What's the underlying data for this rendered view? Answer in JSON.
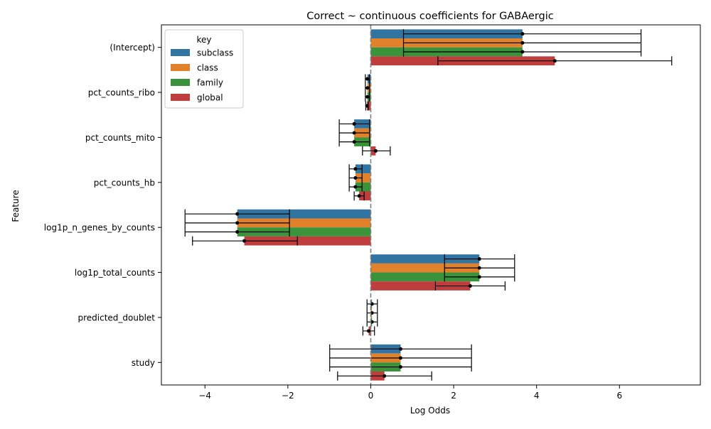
{
  "chart_data": {
    "type": "bar",
    "orientation": "horizontal",
    "title": "Correct ~ continuous coefficients for GABAergic",
    "xlabel": "Log Odds",
    "ylabel": "Feature",
    "xlim": [
      -5.05,
      7.95
    ],
    "xticks": [
      -4,
      -2,
      0,
      2,
      4,
      6
    ],
    "xtick_labels": [
      "−4",
      "−2",
      "0",
      "2",
      "4",
      "6"
    ],
    "reference_line": 0,
    "grid": false,
    "legend": {
      "title": "key",
      "position": "top-left"
    },
    "categories": [
      "(Intercept)",
      "pct_counts_ribo",
      "pct_counts_mito",
      "pct_counts_hb",
      "log1p_n_genes_by_counts",
      "log1p_total_counts",
      "predicted_doublet",
      "study"
    ],
    "series": [
      {
        "name": "subclass",
        "color": "#3274a1",
        "values": [
          3.66,
          -0.08,
          -0.4,
          -0.37,
          -3.22,
          2.62,
          0.03,
          0.72
        ],
        "ci_low": [
          0.79,
          -0.13,
          -0.76,
          -0.52,
          -4.48,
          1.78,
          -0.09,
          -0.99
        ],
        "ci_high": [
          6.52,
          -0.03,
          -0.03,
          -0.21,
          -1.96,
          3.47,
          0.16,
          2.43
        ]
      },
      {
        "name": "class",
        "color": "#e1812c",
        "values": [
          3.66,
          -0.08,
          -0.4,
          -0.37,
          -3.22,
          2.62,
          0.03,
          0.72
        ],
        "ci_low": [
          0.79,
          -0.13,
          -0.76,
          -0.52,
          -4.48,
          1.78,
          -0.09,
          -0.99
        ],
        "ci_high": [
          6.52,
          -0.03,
          -0.03,
          -0.21,
          -1.96,
          3.47,
          0.16,
          2.43
        ]
      },
      {
        "name": "family",
        "color": "#3a923a",
        "values": [
          3.66,
          -0.08,
          -0.4,
          -0.37,
          -3.22,
          2.62,
          0.03,
          0.72
        ],
        "ci_low": [
          0.79,
          -0.13,
          -0.76,
          -0.52,
          -4.48,
          1.78,
          -0.09,
          -0.99
        ],
        "ci_high": [
          6.52,
          -0.03,
          -0.03,
          -0.21,
          -1.96,
          3.47,
          0.16,
          2.43
        ]
      },
      {
        "name": "global",
        "color": "#c03d3e",
        "values": [
          4.44,
          -0.09,
          0.12,
          -0.28,
          -3.05,
          2.4,
          -0.05,
          0.33
        ],
        "ci_low": [
          1.62,
          -0.12,
          -0.2,
          -0.4,
          -4.3,
          1.56,
          -0.19,
          -0.8
        ],
        "ci_high": [
          7.26,
          -0.06,
          0.47,
          -0.16,
          -1.77,
          3.24,
          0.09,
          1.47
        ]
      }
    ]
  }
}
